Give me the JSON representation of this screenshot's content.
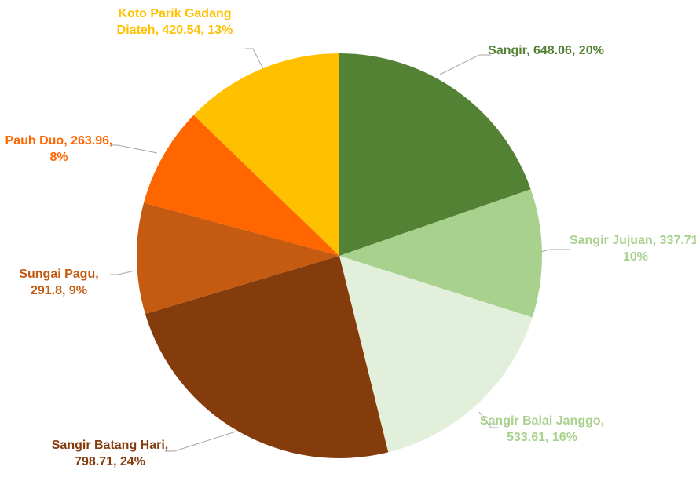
{
  "chart_data": {
    "type": "pie",
    "values": [
      648.06,
      337.71,
      533.61,
      798.71,
      291.8,
      263.96,
      420.54
    ],
    "value_labels": [
      "Sangir, 648.06, 20%",
      "Sangir Jujuan, 337.71, 10%",
      "Sangir Balai Janggo, 533.61, 16%",
      "Sangir Batang Hari, 798.71, 24%",
      "Sungai Pagu, 291.8, 9%",
      "Pauh Duo, 263.96, 8%",
      "Koto Parik Gadang Diateh, 420.54, 13%"
    ],
    "colors": [
      "#548235",
      "#a9d18e",
      "#e2efda",
      "#843c0c",
      "#c55a11",
      "#ff6600",
      "#ffc000"
    ],
    "label_colors": [
      "#548235",
      "#a9d18e",
      "#a9d18e",
      "#843c0c",
      "#c55a11",
      "#ff6600",
      "#ffc000"
    ]
  }
}
